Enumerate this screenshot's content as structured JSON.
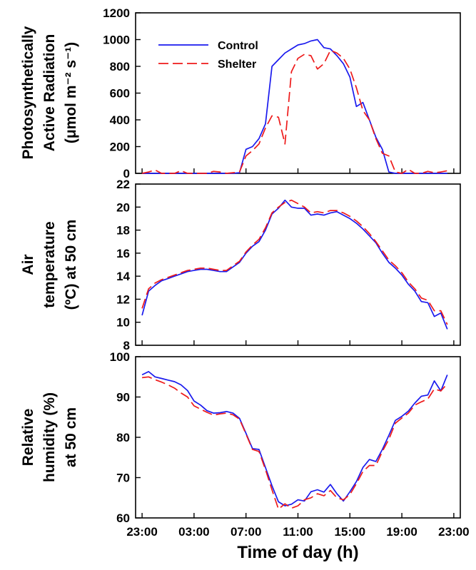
{
  "colors": {
    "control": "#1a1aee",
    "shelter": "#ee1a1a",
    "axis": "#000000"
  },
  "x_axis": {
    "title": "Time of day (h)",
    "tick_values": [
      0,
      4,
      8,
      12,
      16,
      20,
      24
    ],
    "tick_labels": [
      "23:00",
      "03:00",
      "07:00",
      "11:00",
      "15:00",
      "19:00",
      "23:00"
    ],
    "range": [
      -0.5,
      24.5
    ]
  },
  "legend": {
    "control_label": "Control",
    "shelter_label": "Shelter",
    "placement": "top-left inside top panel"
  },
  "chart_data": [
    {
      "type": "line",
      "ylabel_lines": [
        "Photosynthetically",
        "Active Radiation",
        "(μmol m⁻² s⁻¹)"
      ],
      "ylim": [
        0,
        1200
      ],
      "yticks": [
        0,
        200,
        400,
        600,
        800,
        1000,
        1200
      ],
      "x_meaning": "hours since 23:00",
      "series": [
        {
          "name": "Control",
          "style": "solid",
          "x": [
            0,
            0.5,
            1,
            1.5,
            2,
            2.5,
            3,
            3.5,
            4,
            4.5,
            5,
            5.5,
            6,
            6.5,
            7,
            7.5,
            8,
            8.5,
            9,
            9.5,
            10,
            10.5,
            11,
            11.5,
            12,
            12.5,
            13,
            13.5,
            14,
            14.5,
            15,
            15.5,
            16,
            16.5,
            17,
            17.5,
            18,
            18.5,
            19,
            19.5,
            20,
            20.5,
            21,
            21.5,
            22,
            22.5,
            23,
            23.5
          ],
          "y": [
            0,
            0,
            0,
            0,
            0,
            0,
            0,
            0,
            0,
            0,
            0,
            0,
            0,
            0,
            0,
            5,
            180,
            200,
            260,
            370,
            800,
            850,
            900,
            930,
            960,
            970,
            990,
            1000,
            940,
            930,
            880,
            820,
            720,
            500,
            530,
            400,
            270,
            180,
            10,
            0,
            0,
            0,
            0,
            0,
            0,
            0,
            0,
            0
          ]
        },
        {
          "name": "Shelter",
          "style": "dashed",
          "x": [
            0,
            0.5,
            1,
            1.5,
            2,
            2.5,
            3,
            3.5,
            4,
            4.5,
            5,
            5.5,
            6,
            6.5,
            7,
            7.5,
            8,
            8.5,
            9,
            9.5,
            10,
            10.5,
            11,
            11.5,
            12,
            12.5,
            13,
            13.5,
            14,
            14.5,
            15,
            15.5,
            16,
            16.5,
            17,
            17.5,
            18,
            18.5,
            19,
            19.5,
            20,
            20.5,
            21,
            21.5,
            22,
            22.5,
            23,
            23.5
          ],
          "y": [
            0,
            10,
            25,
            0,
            0,
            0,
            20,
            0,
            0,
            0,
            0,
            15,
            10,
            0,
            5,
            10,
            130,
            170,
            220,
            340,
            430,
            420,
            220,
            760,
            860,
            890,
            880,
            780,
            820,
            920,
            900,
            860,
            780,
            640,
            470,
            400,
            260,
            150,
            130,
            10,
            0,
            30,
            0,
            0,
            15,
            5,
            10,
            20
          ]
        }
      ]
    },
    {
      "type": "line",
      "ylabel_lines": [
        "Air",
        "temperature",
        "(ºC) at 50 cm"
      ],
      "ylim": [
        8,
        22
      ],
      "yticks": [
        8,
        10,
        12,
        14,
        16,
        18,
        20,
        22
      ],
      "x_meaning": "hours since 23:00",
      "series": [
        {
          "name": "Control",
          "style": "solid",
          "x": [
            0,
            0.5,
            1,
            1.5,
            2,
            2.5,
            3,
            3.5,
            4,
            4.5,
            5,
            5.5,
            6,
            6.5,
            7,
            7.5,
            8,
            8.5,
            9,
            9.5,
            10,
            10.5,
            11,
            11.5,
            12,
            12.5,
            13,
            13.5,
            14,
            14.5,
            15,
            15.5,
            16,
            16.5,
            17,
            17.5,
            18,
            18.5,
            19,
            19.5,
            20,
            20.5,
            21,
            21.5,
            22,
            22.5,
            23,
            23.5
          ],
          "y": [
            10.6,
            12.7,
            13.2,
            13.6,
            13.8,
            14.0,
            14.2,
            14.4,
            14.5,
            14.6,
            14.6,
            14.5,
            14.4,
            14.4,
            14.8,
            15.2,
            16.0,
            16.6,
            17.0,
            18.0,
            19.4,
            19.9,
            20.6,
            20.0,
            19.9,
            19.9,
            19.3,
            19.4,
            19.3,
            19.5,
            19.6,
            19.3,
            19.0,
            18.6,
            18.1,
            17.5,
            16.9,
            16.0,
            15.2,
            14.7,
            14.1,
            13.3,
            12.7,
            11.8,
            11.7,
            10.5,
            10.8,
            9.4
          ]
        },
        {
          "name": "Shelter",
          "style": "dashed",
          "x": [
            0,
            0.5,
            1,
            1.5,
            2,
            2.5,
            3,
            3.5,
            4,
            4.5,
            5,
            5.5,
            6,
            6.5,
            7,
            7.5,
            8,
            8.5,
            9,
            9.5,
            10,
            10.5,
            11,
            11.5,
            12,
            12.5,
            13,
            13.5,
            14,
            14.5,
            15,
            15.5,
            16,
            16.5,
            17,
            17.5,
            18,
            18.5,
            19,
            19.5,
            20,
            20.5,
            21,
            21.5,
            22,
            22.5,
            23,
            23.5
          ],
          "y": [
            11.2,
            12.9,
            13.4,
            13.7,
            13.9,
            14.1,
            14.3,
            14.5,
            14.6,
            14.7,
            14.7,
            14.6,
            14.5,
            14.5,
            14.9,
            15.3,
            16.1,
            16.7,
            17.2,
            18.2,
            19.5,
            20.0,
            20.4,
            20.6,
            20.3,
            20.0,
            19.5,
            19.6,
            19.5,
            19.7,
            19.7,
            19.5,
            19.2,
            18.8,
            18.3,
            17.7,
            17.0,
            16.2,
            15.4,
            14.9,
            14.3,
            13.5,
            12.9,
            12.1,
            11.9,
            11.0,
            11.0,
            9.8
          ]
        }
      ]
    },
    {
      "type": "line",
      "ylabel_lines": [
        "Relative",
        "humidity (%)",
        "at 50 cm"
      ],
      "ylim": [
        60,
        100
      ],
      "yticks": [
        60,
        70,
        80,
        90,
        100
      ],
      "x_meaning": "hours since 23:00",
      "series": [
        {
          "name": "Control",
          "style": "solid",
          "x": [
            0,
            0.5,
            1,
            1.5,
            2,
            2.5,
            3,
            3.5,
            4,
            4.5,
            5,
            5.5,
            6,
            6.5,
            7,
            7.5,
            8,
            8.5,
            9,
            9.5,
            10,
            10.5,
            11,
            11.5,
            12,
            12.5,
            13,
            13.5,
            14,
            14.5,
            15,
            15.5,
            16,
            16.5,
            17,
            17.5,
            18,
            18.5,
            19,
            19.5,
            20,
            20.5,
            21,
            21.5,
            22,
            22.5,
            23,
            23.5
          ],
          "y": [
            95.5,
            96.3,
            95.0,
            94.6,
            94.2,
            93.8,
            93.0,
            91.6,
            89.0,
            88.0,
            86.6,
            86.0,
            86.1,
            86.4,
            86.0,
            84.7,
            81.0,
            77.2,
            77.0,
            72.5,
            68.0,
            64.0,
            63.0,
            63.4,
            64.5,
            64.2,
            66.5,
            67.0,
            66.4,
            68.3,
            66.0,
            64.2,
            66.5,
            69.0,
            72.5,
            74.5,
            74.0,
            77.0,
            80.5,
            84.2,
            85.2,
            86.5,
            88.5,
            90.2,
            90.5,
            94.0,
            91.5,
            95.5
          ]
        },
        {
          "name": "Shelter",
          "style": "dashed",
          "x": [
            0,
            0.5,
            1,
            1.5,
            2,
            2.5,
            3,
            3.5,
            4,
            4.5,
            5,
            5.5,
            6,
            6.5,
            7,
            7.5,
            8,
            8.5,
            9,
            9.5,
            10,
            10.5,
            11,
            11.5,
            12,
            12.5,
            13,
            13.5,
            14,
            14.5,
            15,
            15.5,
            16,
            16.5,
            17,
            17.5,
            18,
            18.5,
            19,
            19.5,
            20,
            20.5,
            21,
            21.5,
            22,
            22.5,
            23,
            23.5
          ],
          "y": [
            94.8,
            95.0,
            94.3,
            93.7,
            93.0,
            92.2,
            91.0,
            90.0,
            87.8,
            87.0,
            86.2,
            85.5,
            85.8,
            86.0,
            85.6,
            84.5,
            80.8,
            77.0,
            76.5,
            72.0,
            67.0,
            62.2,
            63.5,
            62.4,
            63.0,
            64.5,
            65.0,
            66.0,
            65.5,
            66.8,
            65.0,
            64.5,
            65.8,
            68.5,
            71.5,
            73.0,
            73.0,
            76.5,
            79.5,
            83.5,
            84.8,
            86.0,
            88.0,
            88.8,
            89.5,
            92.0,
            91.5,
            93.3
          ]
        }
      ]
    }
  ]
}
